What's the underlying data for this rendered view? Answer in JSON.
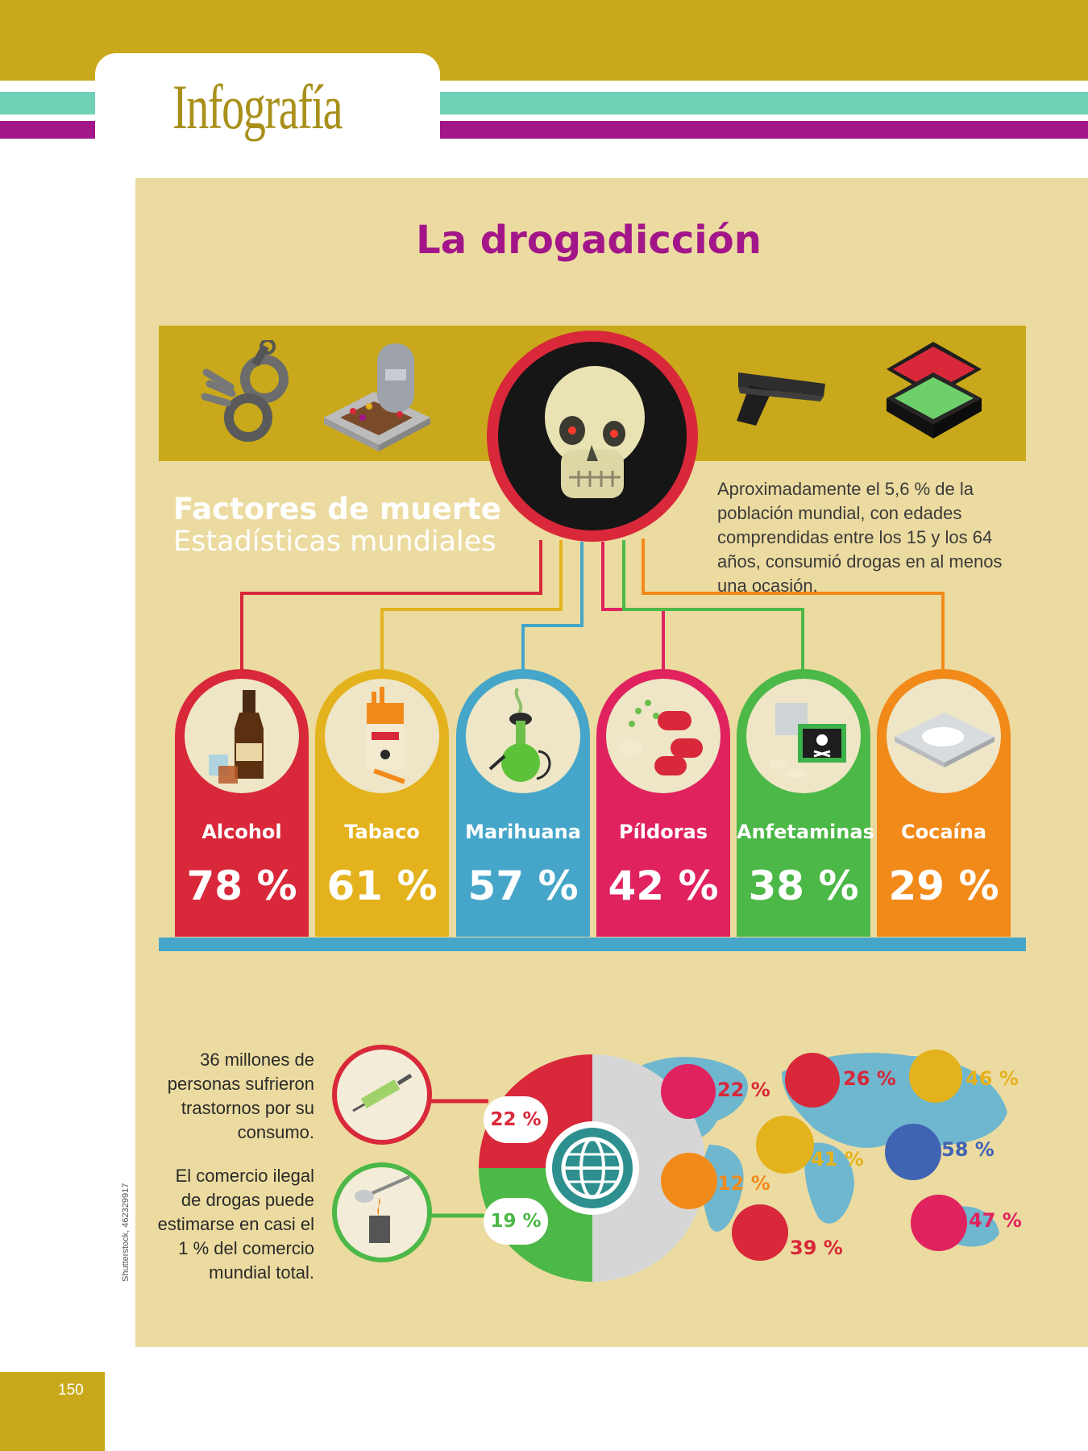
{
  "header": {
    "section_title": "Infografía"
  },
  "main": {
    "title": "La drogadicción",
    "factors_title": "Factores de muerte",
    "factors_subtitle": "Estadísticas mundiales",
    "intro": "Aproximadamente el 5,6 % de la población mundial, con edades comprendidas entre los 15 y los 64 años, consumió drogas en al menos una ocasión."
  },
  "colors": {
    "gold": "#c9a91b",
    "panel": "#ecdba0",
    "magenta": "#a3168a",
    "red": "#d8283a",
    "yellow": "#e4b21c",
    "blue": "#45a6c9",
    "pink": "#e0225f",
    "green": "#4cb847",
    "orange": "#f28a1a"
  },
  "top_icons": [
    "handcuffs-icon",
    "grave-icon",
    "pistol-icon",
    "money-case-icon"
  ],
  "categories": [
    {
      "label": "Alcohol",
      "value": "78 %",
      "icon": "bottle-icon"
    },
    {
      "label": "Tabaco",
      "value": "61 %",
      "icon": "cigarette-pack-icon"
    },
    {
      "label": "Marihuana",
      "value": "57 %",
      "icon": "bong-icon"
    },
    {
      "label": "Píldoras",
      "value": "42 %",
      "icon": "pills-icon"
    },
    {
      "label": "Anfetaminas",
      "value": "38 %",
      "icon": "amphetamine-box-icon"
    },
    {
      "label": "Cocaína",
      "value": "29 %",
      "icon": "powder-icon"
    }
  ],
  "bottom": {
    "stat1_text": "36 millones de personas sufrieron trastornos por su consumo.",
    "stat2_text": "El comercio ilegal de drogas puede estimarse en casi el 1 % del comercio mundial total.",
    "pct1": "22 %",
    "pct2": "19 %",
    "map_values": [
      {
        "value": "22 %",
        "icon": "cash-icon"
      },
      {
        "value": "26 %",
        "icon": "mushroom-icon"
      },
      {
        "value": "46 %",
        "icon": "opium-pipe-icon"
      },
      {
        "value": "41 %",
        "icon": "cannabis-leaf-icon"
      },
      {
        "value": "58 %",
        "icon": "joint-icon"
      },
      {
        "value": "12 %",
        "icon": "tablets-icon"
      },
      {
        "value": "39 %",
        "icon": "package-icon"
      },
      {
        "value": "47 %",
        "icon": "pill-bottle-icon"
      }
    ]
  },
  "footer": {
    "page_number": "150",
    "credit": "Shutterstock, 462329917"
  }
}
